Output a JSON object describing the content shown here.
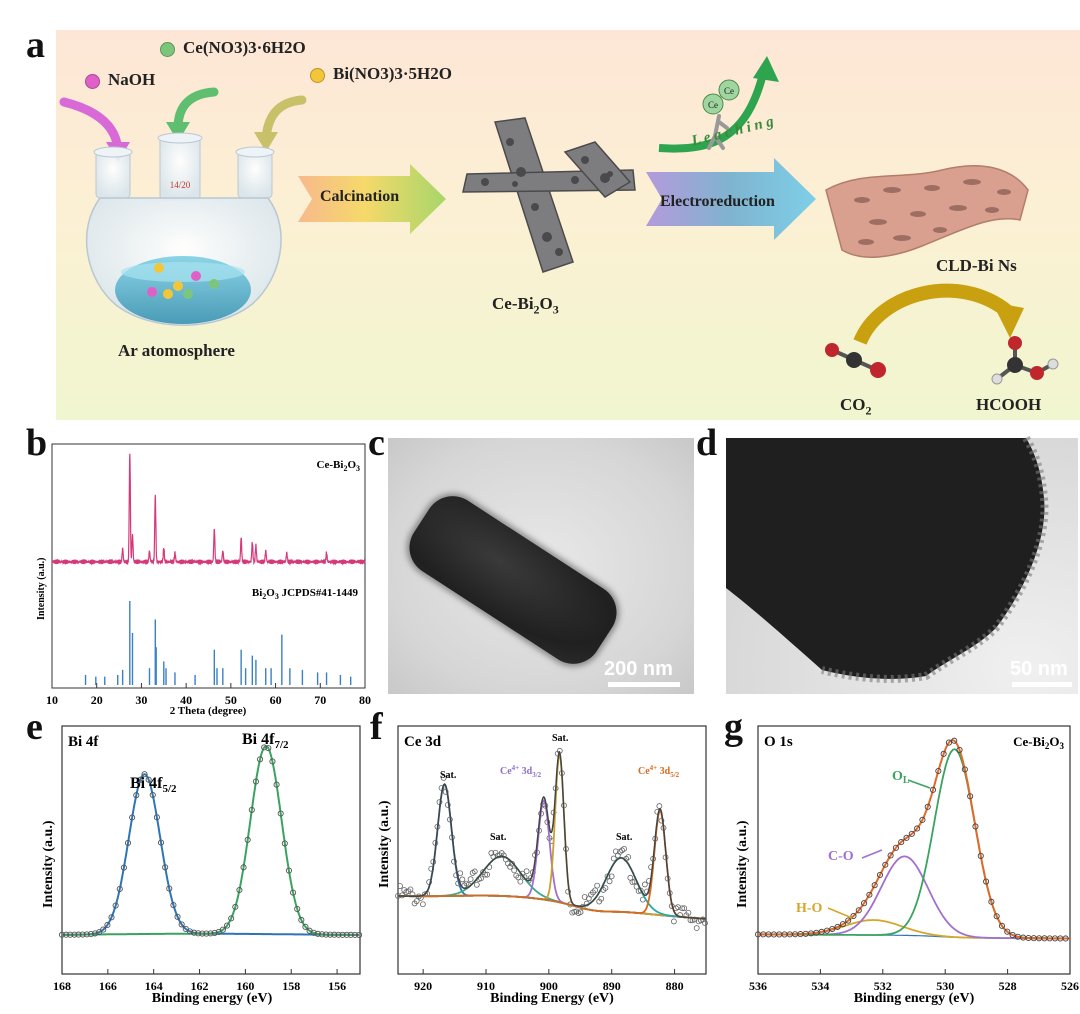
{
  "panel_a": {
    "label": "a",
    "reagents": {
      "naoh": "NaOH",
      "ce_nitrate": "Ce(NO3)3·6H2O",
      "bi_nitrate": "Bi(NO3)3·5H2O"
    },
    "flask_joint": "14/20",
    "atmosphere": "Ar atomosphere",
    "calcination": "Calcination",
    "precursor": "Ce-Bi2O3",
    "electroreduction": "Electroreduction",
    "leaching": "L e a c h i n g",
    "product": "CLD-Bi Ns",
    "co2": "CO2",
    "hcooh": "HCOOH",
    "ce_ball": "Ce",
    "colors": {
      "naoh": "#e060c8",
      "ce": "#7cc67c",
      "bi": "#f3c63a",
      "arrow": "#c8a010"
    }
  },
  "panel_b": {
    "label": "b",
    "sample_label": "Ce-Bi2O3",
    "ref_label": "Bi2O3 JCPDS#41-1449",
    "ylabel": "Intensity (a.u.)",
    "xlabel": "2 Theta (degree)",
    "xticks": [
      "10",
      "20",
      "30",
      "40",
      "50",
      "60",
      "70",
      "80"
    ]
  },
  "panel_c": {
    "label": "c",
    "scale": "200 nm"
  },
  "panel_d": {
    "label": "d",
    "scale": "50 nm"
  },
  "panel_e": {
    "label": "e",
    "title": "Bi 4f",
    "peak1": "Bi 4f5/2",
    "peak2": "Bi 4f7/2",
    "ylabel": "Intensity (a.u.)",
    "xlabel": "Binding energy (eV)",
    "xticks": [
      "168",
      "166",
      "164",
      "162",
      "160",
      "158",
      "156"
    ]
  },
  "panel_f": {
    "label": "f",
    "title": "Ce 3d",
    "sat": "Sat.",
    "ce32": "Ce4+ 3d3/2",
    "ce52": "Ce4+ 3d5/2",
    "ylabel": "Intensity (a.u.)",
    "xlabel": "Binding Energy (eV)",
    "xticks": [
      "920",
      "910",
      "900",
      "890",
      "880"
    ]
  },
  "panel_g": {
    "label": "g",
    "title": "O 1s",
    "sample": "Ce-Bi2O3",
    "ol": "OL",
    "co": "C-O",
    "ho": "H-O",
    "ylabel": "Intensity (a.u.)",
    "xlabel": "Binding energy (eV)",
    "xticks": [
      "536",
      "534",
      "532",
      "530",
      "528",
      "526"
    ]
  },
  "chart_data": [
    {
      "type": "line",
      "panel": "b",
      "title": "",
      "xlabel": "2 Theta (degree)",
      "ylabel": "Intensity (a.u.)",
      "xlim": [
        10,
        80
      ],
      "series": [
        {
          "name": "Ce-Bi2O3",
          "peaks_x": [
            25.8,
            27.4,
            28.0,
            31.8,
            33.1,
            35.0,
            37.5,
            46.3,
            48.2,
            52.3,
            54.8,
            55.6,
            57.8,
            62.5,
            71.4
          ],
          "peaks_y": [
            0.12,
            1.0,
            0.25,
            0.1,
            0.6,
            0.12,
            0.08,
            0.3,
            0.1,
            0.22,
            0.18,
            0.15,
            0.1,
            0.08,
            0.08
          ]
        },
        {
          "name": "Bi2O3 JCPDS#41-1449",
          "peaks_x": [
            17.5,
            19.8,
            21.8,
            24.7,
            25.8,
            27.4,
            28.0,
            31.8,
            33.1,
            33.3,
            35.0,
            35.5,
            37.5,
            42.0,
            46.3,
            46.9,
            48.2,
            52.3,
            53.3,
            54.8,
            55.6,
            57.8,
            59.0,
            61.4,
            63.2,
            66.0,
            69.4,
            71.4,
            74.5,
            76.8
          ],
          "peaks_y": [
            0.12,
            0.1,
            0.1,
            0.12,
            0.18,
            1.0,
            0.62,
            0.2,
            0.78,
            0.45,
            0.28,
            0.2,
            0.15,
            0.12,
            0.42,
            0.2,
            0.2,
            0.42,
            0.2,
            0.35,
            0.3,
            0.2,
            0.2,
            0.6,
            0.2,
            0.18,
            0.15,
            0.15,
            0.12,
            0.1
          ]
        }
      ]
    },
    {
      "type": "line",
      "panel": "e",
      "title": "Bi 4f",
      "xlabel": "Binding energy (eV)",
      "ylabel": "Intensity (a.u.)",
      "xlim": [
        168,
        155
      ],
      "series": [
        {
          "name": "Bi 4f5/2",
          "center": 164.4,
          "fwhm": 1.6,
          "height": 0.85
        },
        {
          "name": "Bi 4f7/2",
          "center": 159.1,
          "fwhm": 1.6,
          "height": 1.0
        }
      ]
    },
    {
      "type": "line",
      "panel": "f",
      "title": "Ce 3d",
      "xlabel": "Binding Energy (eV)",
      "ylabel": "Intensity (a.u.)",
      "xlim": [
        924,
        875
      ],
      "series": [
        {
          "name": "Sat.",
          "center": 916.6,
          "height": 0.62
        },
        {
          "name": "Sat.",
          "center": 907.5,
          "height": 0.22
        },
        {
          "name": "Ce4+ 3d3/2",
          "center": 900.8,
          "height": 0.55
        },
        {
          "name": "Sat.",
          "center": 898.3,
          "height": 0.82
        },
        {
          "name": "Sat.",
          "center": 888.5,
          "height": 0.3
        },
        {
          "name": "Ce4+ 3d5/2",
          "center": 882.3,
          "height": 0.58
        }
      ]
    },
    {
      "type": "line",
      "panel": "g",
      "title": "O 1s",
      "xlabel": "Binding energy (eV)",
      "ylabel": "Intensity (a.u.)",
      "xlim": [
        536,
        526
      ],
      "series": [
        {
          "name": "OL",
          "center": 529.7,
          "height": 1.0
        },
        {
          "name": "C-O",
          "center": 531.3,
          "height": 0.42
        },
        {
          "name": "H-O",
          "center": 532.3,
          "height": 0.08
        }
      ]
    }
  ]
}
